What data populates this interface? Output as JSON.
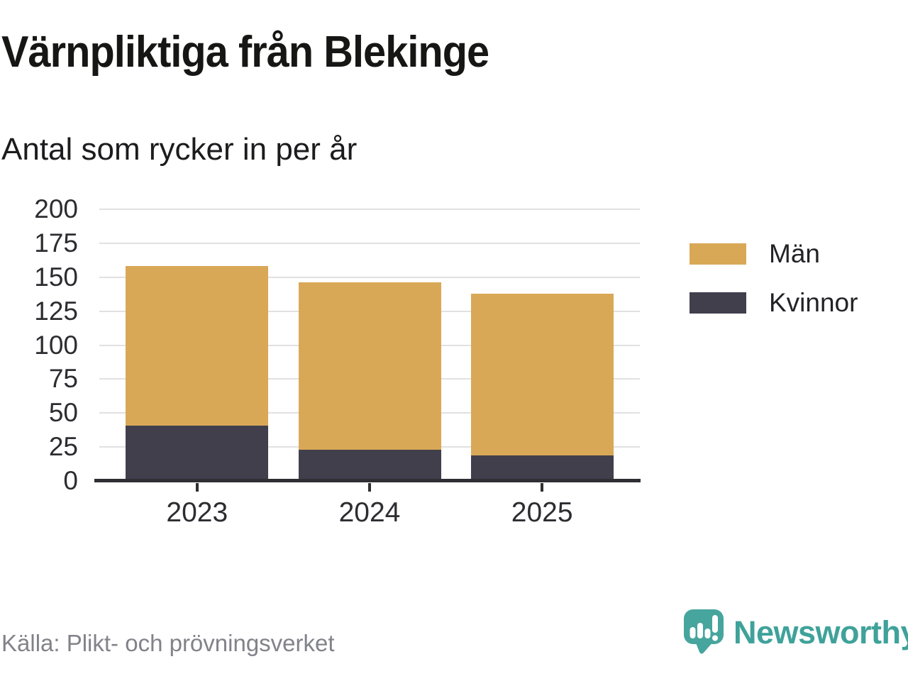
{
  "header": {
    "title": "Värnpliktiga från Blekinge",
    "subtitle": "Antal som rycker in per år"
  },
  "chart_data": {
    "type": "bar",
    "stacked": true,
    "title": "Värnpliktiga från Blekinge",
    "subtitle": "Antal som rycker in per år",
    "categories": [
      "2023",
      "2024",
      "2025"
    ],
    "series": [
      {
        "name": "Män",
        "color": "#d9a857",
        "values": [
          117,
          123,
          119
        ]
      },
      {
        "name": "Kvinnor",
        "color": "#413f4c",
        "values": [
          41,
          23,
          19
        ]
      }
    ],
    "stacked_totals": [
      158,
      146,
      138
    ],
    "ylim": [
      0,
      200
    ],
    "yticks": [
      0,
      25,
      50,
      75,
      100,
      125,
      150,
      175,
      200
    ],
    "grid": "horizontal-light",
    "legend_position": "right-top"
  },
  "footer": {
    "source": "Källa: Plikt- och prövningsverket",
    "brand": "Newsworthy"
  },
  "colors": {
    "man_gold": "#d9a857",
    "kvinnor_dark": "#413f4c",
    "brand_teal": "#3fa29a",
    "title_text": "#161614",
    "axis_text": "#2d2d31",
    "muted_text": "#82828a",
    "gridline": "#e1e1e3",
    "axis_line": "#2f2f33",
    "background": "#ffffff"
  }
}
